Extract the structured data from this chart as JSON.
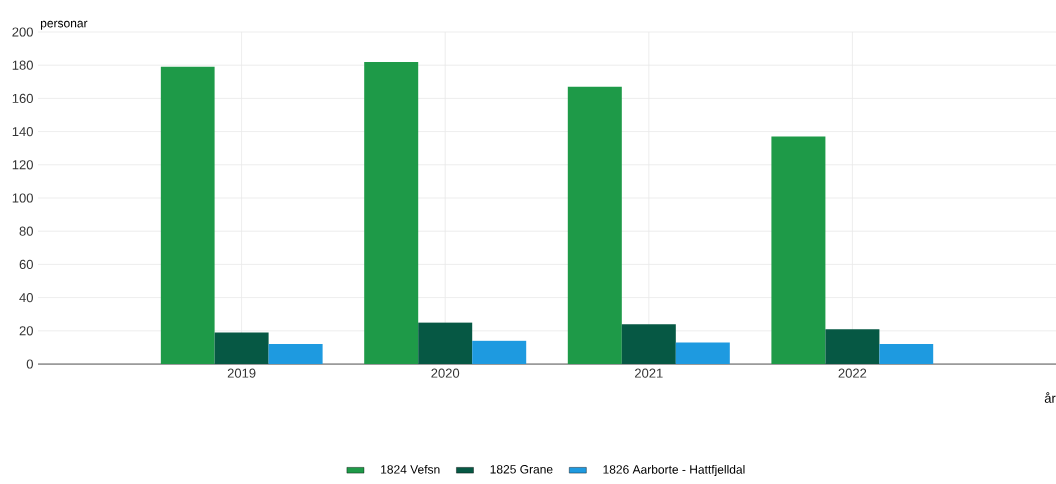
{
  "chart_data": {
    "type": "bar",
    "xlabel": "år",
    "ylabel": "personar",
    "categories": [
      "2019",
      "2020",
      "2021",
      "2022"
    ],
    "series": [
      {
        "name": "1824 Vefsn",
        "color": "#1e9a48",
        "values": [
          179,
          182,
          167,
          137
        ]
      },
      {
        "name": "1825 Grane",
        "color": "#065844",
        "values": [
          19,
          25,
          24,
          21
        ]
      },
      {
        "name": "1826 Aarborte - Hattfjelldal",
        "color": "#1e9ae0",
        "values": [
          12,
          14,
          13,
          12
        ]
      }
    ],
    "ylim": [
      0,
      200
    ],
    "yticks": [
      0,
      20,
      40,
      60,
      80,
      100,
      120,
      140,
      160,
      180,
      200
    ],
    "grid": true,
    "legend": "bottom"
  }
}
